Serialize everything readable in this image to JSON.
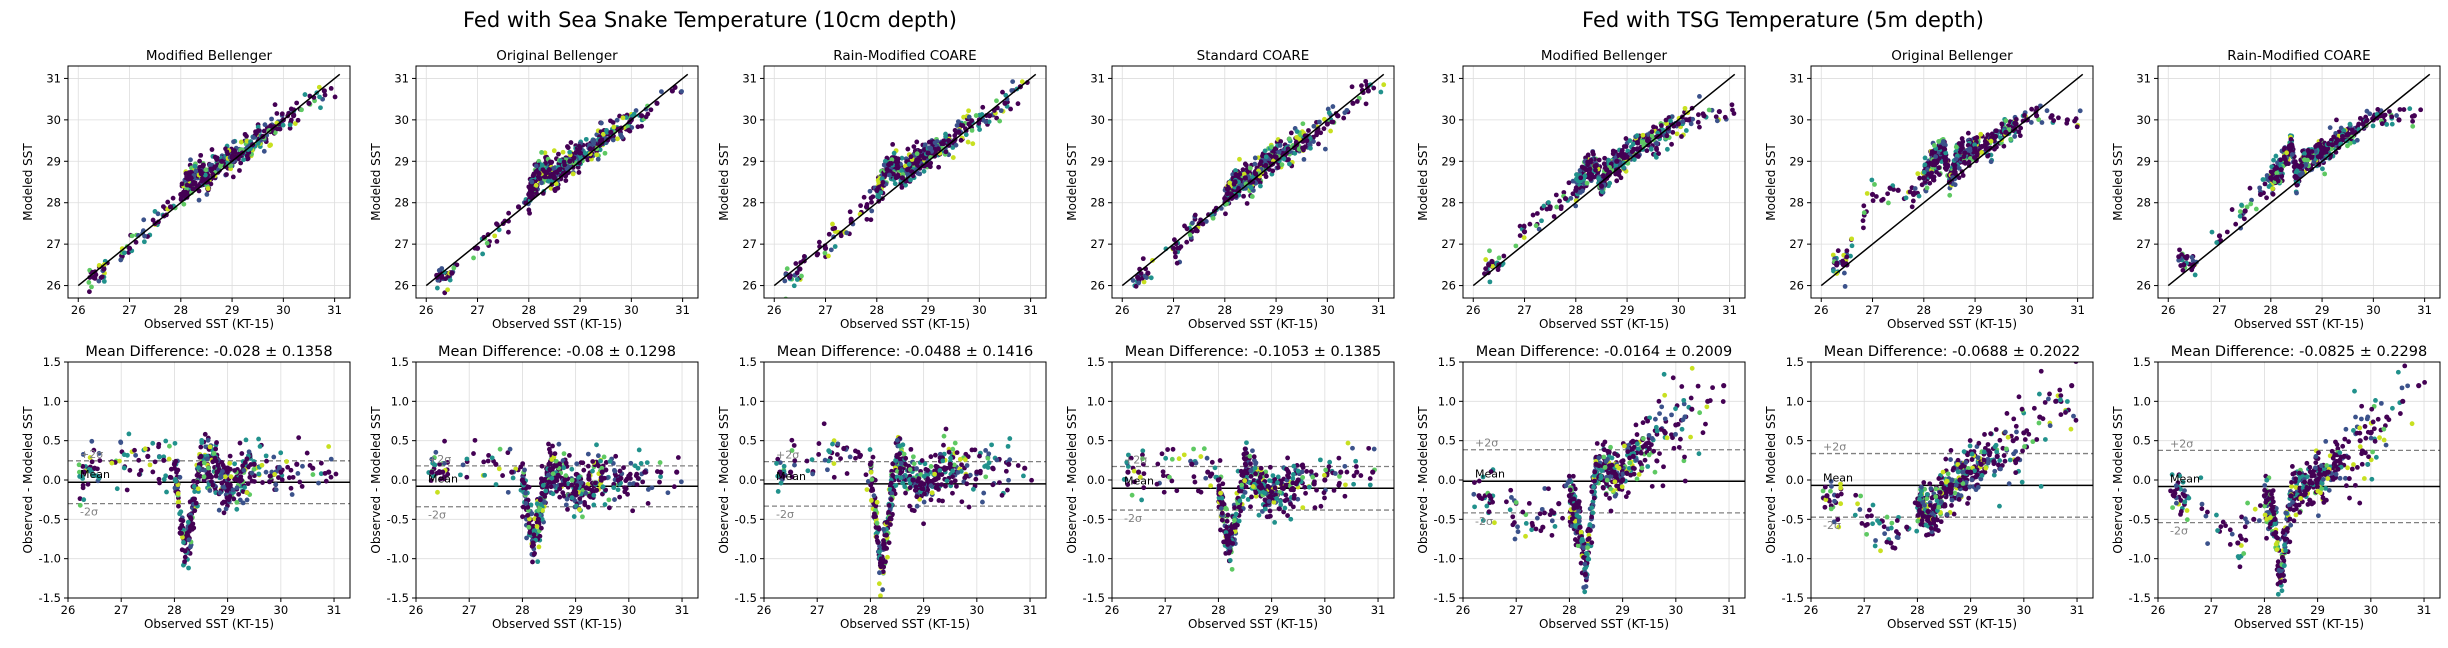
{
  "suptitles": {
    "left": "Fed with Sea Snake Temperature (10cm depth)",
    "right": "Fed with TSG Temperature (5m depth)"
  },
  "colors": {
    "dark_purple": "#440154",
    "blue": "#3b528b",
    "teal": "#21918c",
    "green": "#5ec962",
    "yellow": "#c8e020",
    "ref_line": "#000000",
    "sigma_line": "#808080",
    "grid": "#dddddd"
  },
  "chart_data": [
    {
      "type": "scatter",
      "panel": "scatter",
      "title": "Modified Bellenger",
      "xlabel": "Observed SST (KT-15)",
      "ylabel": "Modeled SST",
      "xlim": [
        25.8,
        31.3
      ],
      "ylim": [
        25.7,
        31.3
      ],
      "xticks": [
        26,
        27,
        28,
        29,
        30,
        31
      ],
      "yticks": [
        26,
        27,
        28,
        29,
        30,
        31
      ],
      "grid": true,
      "one_to_one_line": true,
      "series": [
        {
          "x": [
            26.3,
            26.5,
            27.0,
            27.5,
            27.8,
            28.0,
            28.2,
            28.4,
            28.5,
            28.6,
            28.8,
            29.0,
            29.2,
            29.4,
            29.6,
            29.8,
            30.0,
            30.2,
            30.5,
            30.8
          ],
          "y": [
            26.2,
            26.4,
            26.9,
            27.5,
            27.9,
            28.2,
            28.6,
            28.7,
            28.5,
            28.8,
            29.0,
            29.1,
            29.2,
            29.4,
            29.6,
            29.8,
            30.0,
            30.1,
            30.4,
            30.7
          ]
        }
      ]
    },
    {
      "type": "scatter",
      "panel": "scatter",
      "title": "Original Bellenger",
      "xlabel": "Observed SST (KT-15)",
      "ylabel": "Modeled SST",
      "xlim": [
        25.8,
        31.3
      ],
      "ylim": [
        25.7,
        31.3
      ],
      "xticks": [
        26,
        27,
        28,
        29,
        30,
        31
      ],
      "yticks": [
        26,
        27,
        28,
        29,
        30,
        31
      ],
      "grid": true,
      "one_to_one_line": true,
      "series": [
        {
          "x": [
            26.3,
            26.5,
            27.0,
            27.5,
            27.8,
            28.0,
            28.2,
            28.4,
            28.5,
            28.6,
            28.8,
            29.0,
            29.2,
            29.4,
            29.6,
            29.8,
            30.0,
            30.2,
            30.5,
            30.8
          ],
          "y": [
            26.2,
            26.3,
            26.9,
            27.5,
            27.9,
            28.2,
            28.7,
            28.8,
            28.6,
            28.8,
            29.0,
            29.2,
            29.3,
            29.5,
            29.7,
            29.8,
            30.0,
            30.1,
            30.4,
            30.7
          ]
        }
      ]
    },
    {
      "type": "scatter",
      "panel": "scatter",
      "title": "Rain-Modified COARE",
      "xlabel": "Observed SST (KT-15)",
      "ylabel": "Modeled SST",
      "xlim": [
        25.8,
        31.3
      ],
      "ylim": [
        25.7,
        31.3
      ],
      "xticks": [
        26,
        27,
        28,
        29,
        30,
        31
      ],
      "yticks": [
        26,
        27,
        28,
        29,
        30,
        31
      ],
      "grid": true,
      "one_to_one_line": true,
      "series": [
        {
          "x": [
            26.3,
            26.5,
            27.0,
            27.5,
            27.8,
            28.0,
            28.2,
            28.4,
            28.5,
            28.6,
            28.8,
            29.0,
            29.2,
            29.4,
            29.6,
            29.8,
            30.0,
            30.2,
            30.5,
            30.8
          ],
          "y": [
            26.2,
            26.4,
            26.9,
            27.6,
            27.9,
            28.3,
            28.8,
            28.9,
            28.6,
            28.8,
            29.0,
            29.2,
            29.3,
            29.5,
            29.7,
            29.9,
            30.0,
            30.1,
            30.4,
            30.8
          ]
        }
      ]
    },
    {
      "type": "scatter",
      "panel": "scatter",
      "title": "Standard COARE",
      "xlabel": "Observed SST (KT-15)",
      "ylabel": "Modeled SST",
      "xlim": [
        25.8,
        31.3
      ],
      "ylim": [
        25.7,
        31.3
      ],
      "xticks": [
        26,
        27,
        28,
        29,
        30,
        31
      ],
      "yticks": [
        26,
        27,
        28,
        29,
        30,
        31
      ],
      "grid": true,
      "one_to_one_line": true,
      "series": [
        {
          "x": [
            26.3,
            26.5,
            27.0,
            27.5,
            27.8,
            28.0,
            28.2,
            28.4,
            28.5,
            28.6,
            28.8,
            29.0,
            29.2,
            29.4,
            29.6,
            29.8,
            30.0,
            30.2,
            30.5,
            30.8
          ],
          "y": [
            26.2,
            26.3,
            26.9,
            27.5,
            27.8,
            28.1,
            28.5,
            28.6,
            28.5,
            28.7,
            28.9,
            29.1,
            29.2,
            29.4,
            29.5,
            29.7,
            29.9,
            30.1,
            30.4,
            30.7
          ]
        }
      ]
    },
    {
      "type": "scatter",
      "panel": "scatter",
      "title": "Modified Bellenger",
      "xlabel": "Observed SST (KT-15)",
      "ylabel": "Modeled SST",
      "xlim": [
        25.8,
        31.3
      ],
      "ylim": [
        25.7,
        31.3
      ],
      "xticks": [
        26,
        27,
        28,
        29,
        30,
        31
      ],
      "yticks": [
        26,
        27,
        28,
        29,
        30,
        31
      ],
      "grid": true,
      "one_to_one_line": true,
      "series": [
        {
          "x": [
            26.3,
            26.5,
            27.0,
            27.5,
            27.8,
            28.0,
            28.2,
            28.4,
            28.5,
            28.6,
            28.8,
            29.0,
            29.2,
            29.4,
            29.6,
            29.8,
            30.0,
            30.2,
            30.5,
            30.8
          ],
          "y": [
            26.5,
            26.5,
            27.3,
            27.9,
            28.1,
            28.3,
            28.8,
            28.9,
            28.4,
            28.8,
            29.0,
            29.1,
            29.3,
            29.5,
            29.6,
            29.8,
            29.9,
            30.0,
            30.1,
            30.2
          ]
        }
      ]
    },
    {
      "type": "scatter",
      "panel": "scatter",
      "title": "Original Bellenger",
      "xlabel": "Observed SST (KT-15)",
      "ylabel": "Modeled SST",
      "xlim": [
        25.8,
        31.3
      ],
      "ylim": [
        25.7,
        31.3
      ],
      "xticks": [
        26,
        27,
        28,
        29,
        30,
        31
      ],
      "yticks": [
        26,
        27,
        28,
        29,
        30,
        31
      ],
      "grid": true,
      "one_to_one_line": true,
      "series": [
        {
          "x": [
            26.3,
            26.5,
            27.0,
            27.5,
            27.8,
            28.0,
            28.2,
            28.4,
            28.5,
            28.6,
            28.8,
            29.0,
            29.2,
            29.4,
            29.6,
            29.8,
            30.0,
            30.2,
            30.5,
            30.8
          ],
          "y": [
            26.5,
            26.5,
            28.2,
            28.3,
            28.2,
            28.6,
            29.0,
            29.3,
            28.5,
            28.9,
            29.2,
            29.3,
            29.4,
            29.6,
            29.7,
            29.9,
            30.0,
            30.1,
            30.1,
            30.0
          ]
        }
      ]
    },
    {
      "type": "scatter",
      "panel": "scatter",
      "title": "Rain-Modified COARE",
      "xlabel": "Observed SST (KT-15)",
      "ylabel": "Modeled SST",
      "xlim": [
        25.8,
        31.3
      ],
      "ylim": [
        25.7,
        31.3
      ],
      "xticks": [
        26,
        27,
        28,
        29,
        30,
        31
      ],
      "yticks": [
        26,
        27,
        28,
        29,
        30,
        31
      ],
      "grid": true,
      "one_to_one_line": true,
      "series": [
        {
          "x": [
            26.3,
            26.5,
            27.0,
            27.5,
            27.8,
            28.0,
            28.2,
            28.4,
            28.5,
            28.6,
            28.8,
            29.0,
            29.2,
            29.4,
            29.6,
            29.8,
            30.0,
            30.2,
            30.5,
            30.8
          ],
          "y": [
            26.5,
            26.5,
            27.2,
            27.8,
            28.2,
            28.6,
            28.8,
            29.4,
            28.6,
            28.9,
            29.1,
            29.2,
            29.4,
            29.6,
            29.7,
            29.9,
            30.0,
            30.1,
            30.0,
            30.1
          ]
        }
      ]
    },
    {
      "type": "scatter",
      "panel": "diff",
      "title": "Mean Difference: -0.028 ± 0.1358",
      "xlabel": "Observed SST (KT-15)",
      "ylabel": "Observed - Modeled SST",
      "xlim": [
        26,
        31.3
      ],
      "ylim": [
        -1.5,
        1.5
      ],
      "xticks": [
        26,
        27,
        28,
        29,
        30,
        31
      ],
      "yticks": [
        -1.5,
        -1.0,
        -0.5,
        0.0,
        0.5,
        1.0,
        1.5
      ],
      "grid": true,
      "mean": -0.028,
      "plus_2sigma": 0.244,
      "minus_2sigma": -0.3,
      "labels": [
        "Mean",
        "+2σ",
        "-2σ"
      ],
      "series": [
        {
          "x": [
            26.3,
            26.5,
            27.5,
            27.8,
            28.0,
            28.2,
            28.3,
            28.5,
            28.8,
            29.0,
            29.2,
            29.5,
            29.8,
            30.0,
            30.3,
            30.6,
            30.9
          ],
          "y": [
            0.1,
            0.15,
            0.3,
            0.25,
            0.2,
            -0.9,
            -0.6,
            0.3,
            0.1,
            -0.05,
            0.0,
            0.2,
            0.05,
            0.1,
            0.2,
            0.15,
            0.1
          ]
        }
      ]
    },
    {
      "type": "scatter",
      "panel": "diff",
      "title": "Mean Difference: -0.08 ± 0.1298",
      "xlabel": "Observed SST (KT-15)",
      "ylabel": "Observed - Modeled SST",
      "xlim": [
        26,
        31.3
      ],
      "ylim": [
        -1.5,
        1.5
      ],
      "xticks": [
        26,
        27,
        28,
        29,
        30,
        31
      ],
      "yticks": [
        -1.5,
        -1.0,
        -0.5,
        0.0,
        0.5,
        1.0,
        1.5
      ],
      "grid": true,
      "mean": -0.08,
      "plus_2sigma": 0.18,
      "minus_2sigma": -0.34,
      "labels": [
        "Mean",
        "+2σ",
        "-2σ"
      ],
      "series": [
        {
          "x": [
            26.3,
            26.5,
            27.5,
            27.8,
            28.0,
            28.2,
            28.3,
            28.5,
            28.8,
            29.0,
            29.2,
            29.5,
            29.8,
            30.0,
            30.3,
            30.6,
            30.9
          ],
          "y": [
            0.1,
            0.1,
            0.2,
            0.1,
            0.0,
            -0.8,
            -0.5,
            0.2,
            0.0,
            -0.1,
            -0.1,
            0.1,
            0.0,
            0.05,
            0.1,
            0.1,
            0.1
          ]
        }
      ]
    },
    {
      "type": "scatter",
      "panel": "diff",
      "title": "Mean Difference: -0.0488 ± 0.1416",
      "xlabel": "Observed SST (KT-15)",
      "ylabel": "Observed - Modeled SST",
      "xlim": [
        26,
        31.3
      ],
      "ylim": [
        -1.5,
        1.5
      ],
      "xticks": [
        26,
        27,
        28,
        29,
        30,
        31
      ],
      "yticks": [
        -1.5,
        -1.0,
        -0.5,
        0.0,
        0.5,
        1.0,
        1.5
      ],
      "grid": true,
      "mean": -0.0488,
      "plus_2sigma": 0.234,
      "minus_2sigma": -0.332,
      "labels": [
        "Mean",
        "+2σ",
        "-2σ"
      ],
      "series": [
        {
          "x": [
            26.3,
            26.5,
            27.5,
            27.8,
            28.0,
            28.2,
            28.3,
            28.5,
            28.8,
            29.0,
            29.2,
            29.5,
            29.8,
            30.0,
            30.3,
            30.6,
            30.9
          ],
          "y": [
            0.1,
            0.1,
            0.4,
            0.3,
            0.2,
            -1.1,
            -0.7,
            0.3,
            0.0,
            -0.05,
            0.0,
            0.2,
            0.05,
            0.1,
            0.15,
            0.2,
            0.15
          ]
        }
      ]
    },
    {
      "type": "scatter",
      "panel": "diff",
      "title": "Mean Difference: -0.1053 ± 0.1385",
      "xlabel": "Observed SST (KT-15)",
      "ylabel": "Observed - Modeled SST",
      "xlim": [
        26,
        31.3
      ],
      "ylim": [
        -1.5,
        1.5
      ],
      "xticks": [
        26,
        27,
        28,
        29,
        30,
        31
      ],
      "yticks": [
        -1.5,
        -1.0,
        -0.5,
        0.0,
        0.5,
        1.0,
        1.5
      ],
      "grid": true,
      "mean": -0.1053,
      "plus_2sigma": 0.172,
      "minus_2sigma": -0.382,
      "labels": [
        "Mean",
        "+2σ",
        "-2σ"
      ],
      "series": [
        {
          "x": [
            26.3,
            26.5,
            27.5,
            27.8,
            28.0,
            28.2,
            28.3,
            28.5,
            28.8,
            29.0,
            29.2,
            29.5,
            29.8,
            30.0,
            30.3,
            30.6,
            30.9
          ],
          "y": [
            0.1,
            0.1,
            0.2,
            0.1,
            0.0,
            -0.8,
            -0.6,
            0.1,
            -0.1,
            -0.15,
            -0.1,
            0.0,
            -0.05,
            0.0,
            0.1,
            0.1,
            0.1
          ]
        }
      ]
    },
    {
      "type": "scatter",
      "panel": "diff",
      "title": "Mean Difference: -0.0164 ± 0.2009",
      "xlabel": "Observed SST (KT-15)",
      "ylabel": "Observed - Modeled SST",
      "xlim": [
        26,
        31.3
      ],
      "ylim": [
        -1.5,
        1.5
      ],
      "xticks": [
        26,
        27,
        28,
        29,
        30,
        31
      ],
      "yticks": [
        -1.5,
        -1.0,
        -0.5,
        0.0,
        0.5,
        1.0,
        1.5
      ],
      "grid": true,
      "mean": -0.0164,
      "plus_2sigma": 0.385,
      "minus_2sigma": -0.418,
      "labels": [
        "Mean",
        "+2σ",
        "-2σ"
      ],
      "series": [
        {
          "x": [
            26.3,
            26.5,
            27.5,
            27.8,
            28.0,
            28.2,
            28.3,
            28.5,
            28.8,
            29.0,
            29.2,
            29.5,
            29.8,
            30.0,
            30.3,
            30.6,
            30.9
          ],
          "y": [
            -0.2,
            -0.2,
            -0.6,
            -0.3,
            -0.2,
            -0.6,
            -1.2,
            0.2,
            0.1,
            0.0,
            0.3,
            0.4,
            0.6,
            0.7,
            0.9,
            1.0,
            1.2
          ]
        }
      ]
    },
    {
      "type": "scatter",
      "panel": "diff",
      "title": "Mean Difference: -0.0688 ± 0.2022",
      "xlabel": "Observed SST (KT-15)",
      "ylabel": "Observed - Modeled SST",
      "xlim": [
        26,
        31.3
      ],
      "ylim": [
        -1.5,
        1.5
      ],
      "xticks": [
        26,
        27,
        28,
        29,
        30,
        31
      ],
      "yticks": [
        -1.5,
        -1.0,
        -0.5,
        0.0,
        0.5,
        1.0,
        1.5
      ],
      "grid": true,
      "mean": -0.0688,
      "plus_2sigma": 0.336,
      "minus_2sigma": -0.473,
      "labels": [
        "Mean",
        "+2σ",
        "-2σ"
      ],
      "series": [
        {
          "x": [
            26.3,
            26.5,
            27.5,
            27.8,
            28.0,
            28.2,
            28.3,
            28.5,
            28.8,
            29.0,
            29.2,
            29.5,
            29.8,
            30.0,
            30.3,
            30.6,
            30.9
          ],
          "y": [
            -0.2,
            -0.2,
            -0.8,
            -0.6,
            -0.3,
            -0.4,
            -0.5,
            -0.1,
            0.0,
            0.1,
            0.2,
            0.3,
            0.5,
            0.6,
            0.8,
            1.0,
            1.2
          ]
        }
      ]
    },
    {
      "type": "scatter",
      "panel": "diff",
      "title": "Mean Difference: -0.0825 ± 0.2298",
      "xlabel": "Observed SST (KT-15)",
      "ylabel": "Observed - Modeled SST",
      "xlim": [
        26,
        31.3
      ],
      "ylim": [
        -1.5,
        1.5
      ],
      "xticks": [
        26,
        27,
        28,
        29,
        30,
        31
      ],
      "yticks": [
        -1.5,
        -1.0,
        -0.5,
        0.0,
        0.5,
        1.0,
        1.5
      ],
      "grid": true,
      "mean": -0.0825,
      "plus_2sigma": 0.377,
      "minus_2sigma": -0.542,
      "labels": [
        "Mean",
        "+2σ",
        "-2σ"
      ],
      "series": [
        {
          "x": [
            26.3,
            26.5,
            27.5,
            27.8,
            28.0,
            28.2,
            28.3,
            28.5,
            28.8,
            29.0,
            29.2,
            29.5,
            29.8,
            30.0,
            30.3,
            30.6,
            30.9
          ],
          "y": [
            -0.2,
            -0.2,
            -0.8,
            -0.5,
            -0.2,
            -0.5,
            -1.3,
            -0.2,
            -0.1,
            0.0,
            0.1,
            0.3,
            0.5,
            0.6,
            0.8,
            1.0,
            1.2
          ]
        }
      ]
    }
  ]
}
